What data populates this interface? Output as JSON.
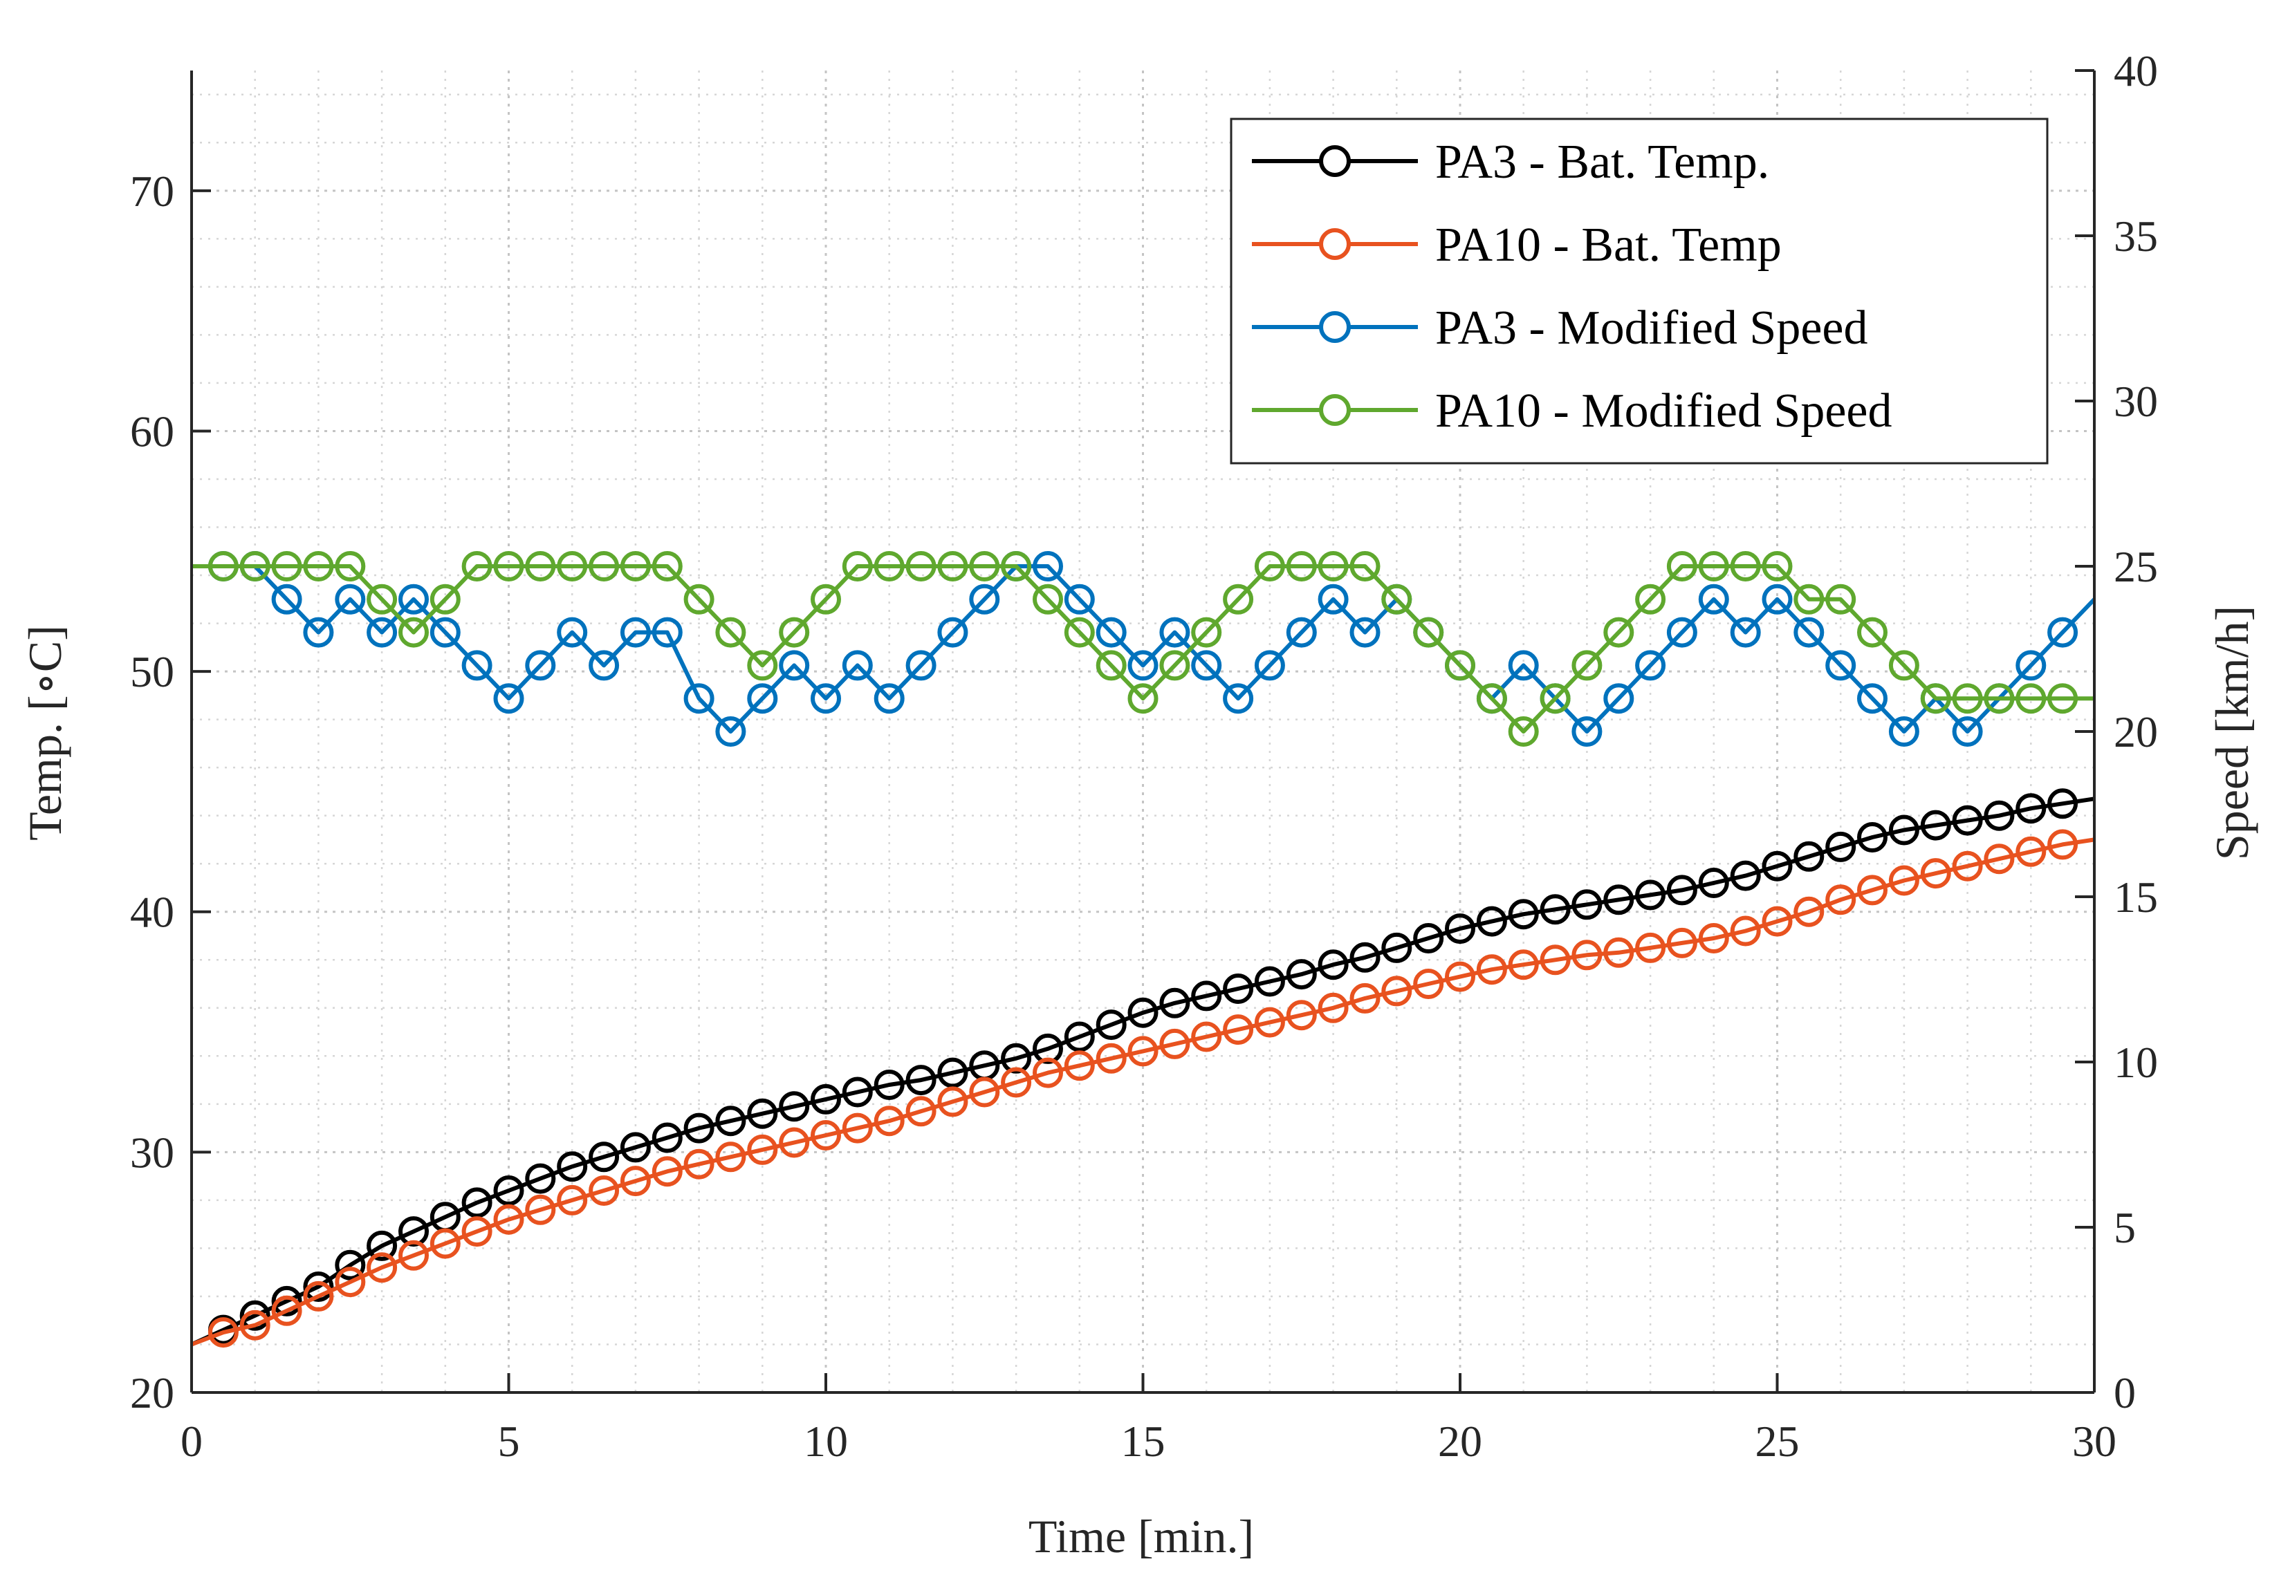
{
  "chart_data": {
    "type": "line",
    "title": "",
    "xlabel": "Time [min.]",
    "ylabel_left": "Temp. [∘C]",
    "ylabel_right": "Speed [km/h]",
    "xlim": [
      0,
      30
    ],
    "ylim_left": [
      20,
      75
    ],
    "ylim_right": [
      0,
      40
    ],
    "xticks": [
      0,
      5,
      10,
      15,
      20,
      25,
      30
    ],
    "yticks_left": [
      20,
      30,
      40,
      50,
      60,
      70
    ],
    "yticks_right": [
      0,
      5,
      10,
      15,
      20,
      25,
      30,
      35,
      40
    ],
    "grid": "major and minor, dotted",
    "legend_position": "top-right",
    "x": [
      0,
      0.5,
      1,
      1.5,
      2,
      2.5,
      3,
      3.5,
      4,
      4.5,
      5,
      5.5,
      6,
      6.5,
      7,
      7.5,
      8,
      8.5,
      9,
      9.5,
      10,
      10.5,
      11,
      11.5,
      12,
      12.5,
      13,
      13.5,
      14,
      14.5,
      15,
      15.5,
      16,
      16.5,
      17,
      17.5,
      18,
      18.5,
      19,
      19.5,
      20,
      20.5,
      21,
      21.5,
      22,
      22.5,
      23,
      23.5,
      24,
      24.5,
      25,
      25.5,
      26,
      26.5,
      27,
      27.5,
      28,
      28.5,
      29,
      29.5,
      30
    ],
    "series": [
      {
        "name": "PA3 - Bat. Temp.",
        "axis": "left",
        "color": "#000000",
        "values": [
          22.0,
          22.6,
          23.2,
          23.8,
          24.4,
          25.3,
          26.1,
          26.7,
          27.3,
          27.9,
          28.4,
          28.9,
          29.4,
          29.8,
          30.2,
          30.6,
          31.0,
          31.3,
          31.6,
          31.9,
          32.2,
          32.5,
          32.8,
          33.0,
          33.3,
          33.6,
          33.9,
          34.3,
          34.8,
          35.3,
          35.8,
          36.2,
          36.5,
          36.8,
          37.1,
          37.4,
          37.8,
          38.1,
          38.5,
          38.9,
          39.3,
          39.6,
          39.9,
          40.1,
          40.3,
          40.5,
          40.7,
          40.9,
          41.2,
          41.5,
          41.9,
          42.3,
          42.7,
          43.1,
          43.4,
          43.6,
          43.8,
          44.0,
          44.3,
          44.5,
          44.7
        ]
      },
      {
        "name": "PA10 - Bat. Temp",
        "axis": "left",
        "color": "#E8521F",
        "values": [
          22.0,
          22.5,
          22.8,
          23.4,
          24.0,
          24.6,
          25.2,
          25.7,
          26.2,
          26.7,
          27.2,
          27.6,
          28.0,
          28.4,
          28.8,
          29.2,
          29.5,
          29.8,
          30.1,
          30.4,
          30.7,
          31.0,
          31.3,
          31.7,
          32.1,
          32.5,
          32.9,
          33.3,
          33.6,
          33.9,
          34.2,
          34.5,
          34.8,
          35.1,
          35.4,
          35.7,
          36.0,
          36.4,
          36.7,
          37.0,
          37.3,
          37.6,
          37.8,
          38.0,
          38.2,
          38.3,
          38.5,
          38.7,
          38.9,
          39.2,
          39.6,
          40.0,
          40.5,
          40.9,
          41.3,
          41.6,
          41.9,
          42.2,
          42.5,
          42.8,
          43.0
        ]
      },
      {
        "name": "PA3 - Modified Speed",
        "axis": "right",
        "color": "#0072BD",
        "values": [
          25,
          25,
          25,
          24,
          23,
          24,
          23,
          24,
          23,
          22,
          21,
          22,
          23,
          22,
          23,
          23,
          21,
          20,
          21,
          22,
          21,
          22,
          21,
          22,
          23,
          24,
          25,
          25,
          24,
          23,
          22,
          23,
          22,
          21,
          22,
          23,
          24,
          23,
          24,
          23,
          22,
          21,
          22,
          21,
          20,
          21,
          22,
          23,
          24,
          23,
          24,
          23,
          22,
          21,
          20,
          21,
          20,
          21,
          22,
          23,
          24
        ]
      },
      {
        "name": "PA10 - Modified Speed",
        "axis": "right",
        "color": "#5FA82E",
        "values": [
          25,
          25,
          25,
          25,
          25,
          25,
          24,
          23,
          24,
          25,
          25,
          25,
          25,
          25,
          25,
          25,
          24,
          23,
          22,
          23,
          24,
          25,
          25,
          25,
          25,
          25,
          25,
          24,
          23,
          22,
          21,
          22,
          23,
          24,
          25,
          25,
          25,
          25,
          24,
          23,
          22,
          21,
          20,
          21,
          22,
          23,
          24,
          25,
          25,
          25,
          25,
          24,
          24,
          23,
          22,
          21,
          21,
          21,
          21,
          21,
          21
        ]
      }
    ],
    "markers": {
      "symbol": "circle",
      "start_index": 1,
      "end_index": 59
    }
  }
}
